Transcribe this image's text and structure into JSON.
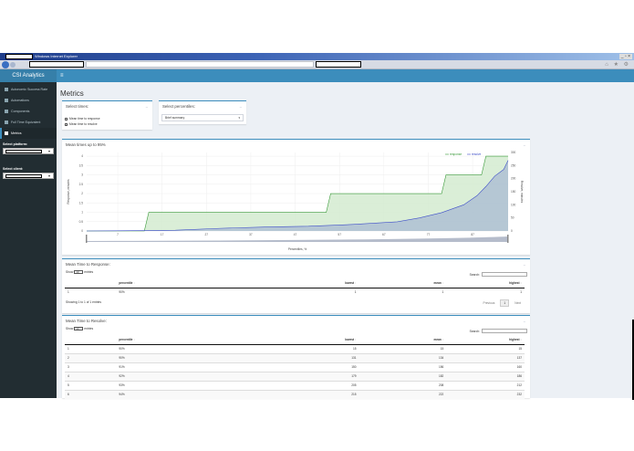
{
  "browser": {
    "title": "Windows Internet Explorer",
    "window_buttons": "_ ▫ ×",
    "toolbar_icons": "⌂ ★ ⚙"
  },
  "app": {
    "logo": "CSI Analytics",
    "menu_toggle": "≡"
  },
  "sidebar": {
    "items": [
      {
        "label": "Autonomic Success Rate",
        "icon": "dashboard-icon"
      },
      {
        "label": "Automations",
        "icon": "grid-icon"
      },
      {
        "label": "Components",
        "icon": "list-icon"
      },
      {
        "label": "Full Time Equivalent",
        "icon": "table-icon"
      },
      {
        "label": "Metrics",
        "icon": "bar-chart-icon",
        "active": true
      }
    ],
    "platform_label": "Select platform:",
    "client_label": "Select client:"
  },
  "page": {
    "title": "Metrics"
  },
  "select_times": {
    "title": "Select times:",
    "collapse": "–",
    "options": [
      {
        "label": "Mean time to response",
        "checked": true
      },
      {
        "label": "Mean time to resolve",
        "checked": true
      }
    ]
  },
  "select_percentiles": {
    "title": "Select percentiles:",
    "collapse": "–",
    "selected": "Brief summary",
    "arrow": "▾"
  },
  "chart_box": {
    "title": "Mean times up to 95%",
    "collapse": "–"
  },
  "chart_data": {
    "type": "area",
    "title": "Mean times up to 95%",
    "xlabel": "Percentiles, %",
    "ylabel_left": "Response, minutes",
    "ylabel_right": "Resolve, minutes",
    "x_ticks": [
      7,
      17,
      27,
      37,
      47,
      57,
      67,
      77,
      87
    ],
    "x_range": [
      0,
      95
    ],
    "y_left_ticks": [
      0,
      0.5,
      1,
      1.5,
      2,
      2.5,
      3,
      3.5,
      4
    ],
    "y_left_range": [
      0,
      4.2
    ],
    "y_right_ticks": [
      0,
      50,
      100,
      150,
      200,
      250,
      300
    ],
    "y_right_range": [
      0,
      300
    ],
    "legend": [
      "response",
      "resolve"
    ],
    "legend_position": "top-right",
    "grid": true,
    "series": [
      {
        "name": "response",
        "axis": "left",
        "color": "#3a9a3a",
        "fill": "#d4ebd0",
        "x": [
          0,
          13,
          14,
          54,
          55,
          80,
          81,
          89,
          90,
          95
        ],
        "values": [
          0,
          0,
          1,
          1,
          2,
          2,
          3,
          3,
          4,
          4
        ]
      },
      {
        "name": "resolve",
        "axis": "right",
        "color": "#3f4fc9",
        "fill": "#aebfd3",
        "x": [
          0,
          10,
          20,
          30,
          40,
          50,
          60,
          70,
          75,
          80,
          85,
          88,
          90,
          92,
          94,
          95
        ],
        "values": [
          0,
          1,
          3,
          10,
          15,
          18,
          25,
          35,
          50,
          70,
          100,
          135,
          170,
          210,
          235,
          270
        ]
      }
    ]
  },
  "response_table": {
    "title": "Mean Time to Response:",
    "collapse": "–",
    "show_label": "Show",
    "entries_label": "entries",
    "page_length": "10",
    "search_label": "Search:",
    "columns": [
      "",
      "percentile",
      "lowest",
      "mean",
      "highest"
    ],
    "rows": [
      [
        "1",
        "90%",
        "1",
        "1",
        "1"
      ]
    ],
    "info": "Showing 1 to 1 of 1 entries",
    "pagination": {
      "previous": "Previous",
      "page": "1",
      "next": "Next"
    }
  },
  "resolve_table": {
    "title": "Mean Time to Resolve:",
    "collapse": "–",
    "show_label": "Show",
    "entries_label": "entries",
    "page_length": "10",
    "search_label": "Search:",
    "columns": [
      "",
      "percentile",
      "lowest",
      "mean",
      "highest"
    ],
    "rows": [
      [
        "1",
        "90%",
        "15",
        "15",
        "15"
      ],
      [
        "2",
        "90%",
        "131",
        "134",
        "137"
      ],
      [
        "3",
        "91%",
        "150",
        "156",
        "160"
      ],
      [
        "4",
        "92%",
        "179",
        "182",
        "186"
      ],
      [
        "5",
        "93%",
        "205",
        "208",
        "212"
      ],
      [
        "6",
        "94%",
        "215",
        "222",
        "232"
      ]
    ]
  }
}
